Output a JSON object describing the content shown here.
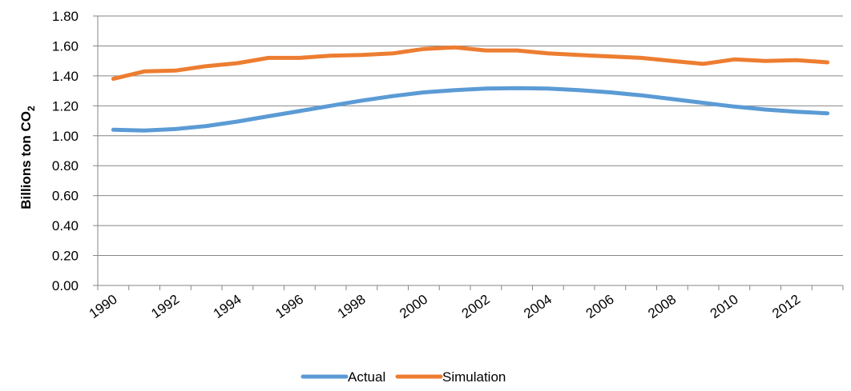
{
  "chart_data": {
    "type": "line",
    "title": "",
    "xlabel": "",
    "ylabel": "Billions ton CO",
    "ylabel_subscript": "2",
    "ylim": [
      0,
      1.8
    ],
    "y_ticks": [
      "0.00",
      "0.20",
      "0.40",
      "0.60",
      "0.80",
      "1.00",
      "1.20",
      "1.40",
      "1.60",
      "1.80"
    ],
    "x": [
      1990,
      1991,
      1992,
      1993,
      1994,
      1995,
      1996,
      1997,
      1998,
      1999,
      2000,
      2001,
      2002,
      2003,
      2004,
      2005,
      2006,
      2007,
      2008,
      2009,
      2010,
      2011,
      2012,
      2013
    ],
    "x_tick_labels": [
      "1990",
      "1992",
      "1994",
      "1996",
      "1998",
      "2000",
      "2002",
      "2004",
      "2006",
      "2008",
      "2010",
      "2012"
    ],
    "grid": true,
    "legend_position": "bottom",
    "series": [
      {
        "name": "Actual",
        "color": "#5B9BD5",
        "values": [
          1.04,
          1.035,
          1.045,
          1.065,
          1.095,
          1.13,
          1.165,
          1.2,
          1.235,
          1.265,
          1.29,
          1.305,
          1.315,
          1.318,
          1.315,
          1.305,
          1.29,
          1.27,
          1.245,
          1.22,
          1.195,
          1.175,
          1.16,
          1.15
        ]
      },
      {
        "name": "Simulation",
        "color": "#ED7D31",
        "values": [
          1.38,
          1.43,
          1.435,
          1.465,
          1.485,
          1.52,
          1.52,
          1.535,
          1.54,
          1.55,
          1.58,
          1.59,
          1.57,
          1.57,
          1.55,
          1.54,
          1.53,
          1.52,
          1.5,
          1.48,
          1.51,
          1.5,
          1.505,
          1.49
        ]
      }
    ]
  }
}
